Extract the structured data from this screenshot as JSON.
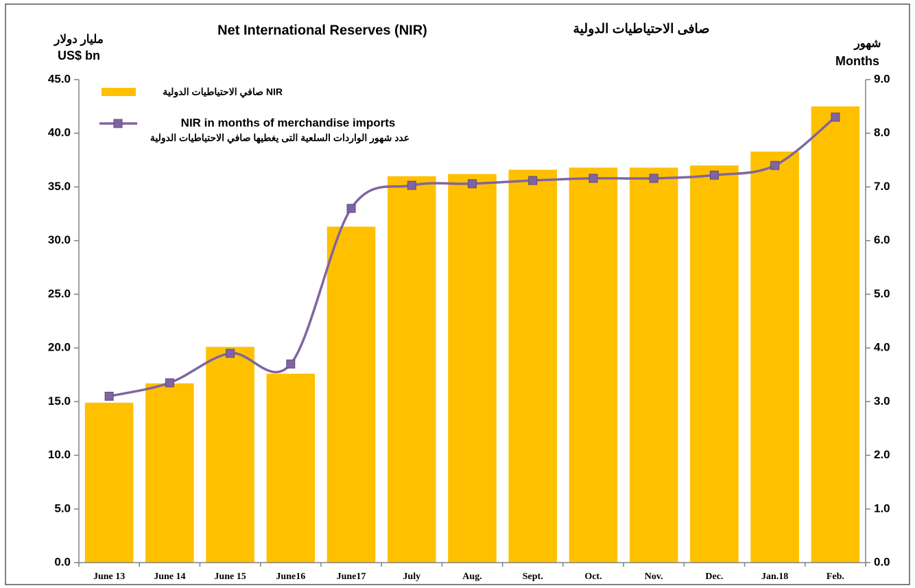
{
  "chart_data": {
    "type": "bar_line",
    "title": "Net International Reserves    (NIR)",
    "title_ar": "صافى الاحتياطيات الدولية",
    "y_label_ar": "مليار دولار",
    "y_label": "US$  bn",
    "y2_label_ar": "شهور",
    "y2_label": "Months",
    "categories": [
      "June 13",
      "June 14",
      "June 15",
      "June16",
      "June17",
      "July",
      "Aug.",
      "Sept.",
      "Oct.",
      "Nov.",
      "Dec.",
      "Jan.18",
      "Feb."
    ],
    "series": [
      {
        "name": "صافي الاحتياطيات الدولية NIR",
        "type": "bar",
        "color": "#ffc000",
        "values": [
          14.9,
          16.7,
          20.1,
          17.6,
          31.3,
          36.0,
          36.2,
          36.6,
          36.8,
          36.8,
          37.0,
          38.3,
          42.5
        ]
      },
      {
        "name": "NIR in months of merchandise imports",
        "name_ar": "عدد شهور الواردات السلعية التى يغطيها صافي الاحتياطيات الدولية",
        "type": "line",
        "axis": "y2",
        "color": "#8064a2",
        "values": [
          3.1,
          3.35,
          3.9,
          3.7,
          6.6,
          7.03,
          7.06,
          7.12,
          7.16,
          7.16,
          7.22,
          7.4,
          8.3
        ]
      }
    ],
    "ylim": [
      0,
      45
    ],
    "yticks": [
      {
        "value": 0,
        "label": "0.0"
      },
      {
        "value": 5,
        "label": "5.0"
      },
      {
        "value": 10,
        "label": "10.0"
      },
      {
        "value": 15,
        "label": "15.0"
      },
      {
        "value": 20,
        "label": "20.0"
      },
      {
        "value": 25,
        "label": "25.0"
      },
      {
        "value": 30,
        "label": "30.0"
      },
      {
        "value": 35,
        "label": "35.0"
      },
      {
        "value": 40,
        "label": "40.0"
      },
      {
        "value": 45,
        "label": "45.0"
      }
    ],
    "y2lim": [
      0,
      9
    ],
    "y2ticks": [
      {
        "value": 0,
        "label": "0.0"
      },
      {
        "value": 1,
        "label": "1.0"
      },
      {
        "value": 2,
        "label": "2.0"
      },
      {
        "value": 3,
        "label": "3.0"
      },
      {
        "value": 4,
        "label": "4.0"
      },
      {
        "value": 5,
        "label": "5.0"
      },
      {
        "value": 6,
        "label": "6.0"
      },
      {
        "value": 7,
        "label": "7.0"
      },
      {
        "value": 8,
        "label": "8.0"
      },
      {
        "value": 9,
        "label": "9.0"
      }
    ],
    "grid": false
  }
}
